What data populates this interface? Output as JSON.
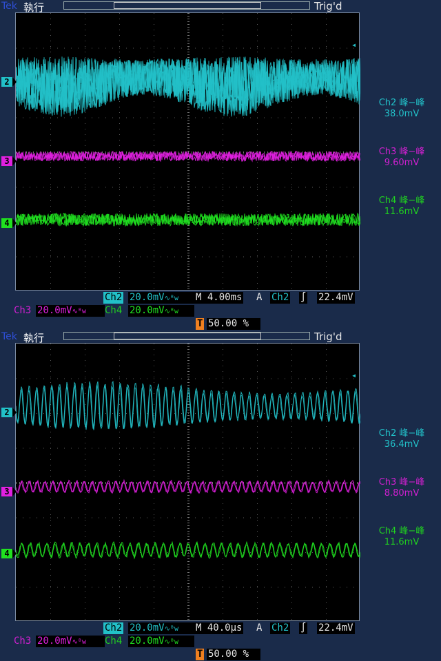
{
  "brand": "Tek",
  "panels": [
    {
      "mode": "執行",
      "trig_state": "Trig'd",
      "meas": [
        {
          "label": "Ch2 峰−峰",
          "value": "38.0mV",
          "color": "#22c0c8"
        },
        {
          "label": "Ch3 峰−峰",
          "value": "9.60mV",
          "color": "#d020d0"
        },
        {
          "label": "Ch4 峰−峰",
          "value": "11.6mV",
          "color": "#20d020"
        }
      ],
      "status": {
        "ch2_name": "Ch2",
        "ch2_scale": "20.0mV",
        "timebase": "M 4.00ms",
        "trig_mode": "A",
        "trig_src": "Ch2",
        "trig_slope": "∫",
        "trig_level": "22.4mV",
        "ch3_name": "Ch3",
        "ch3_scale": "20.0mV",
        "ch4_name": "Ch4",
        "ch4_scale": "20.0mV",
        "bw_limit": "∿ᴮw",
        "trig_pos_icon": "T",
        "trig_pos": "50.00 %"
      },
      "channel_markers": [
        "2",
        "3",
        "4"
      ]
    },
    {
      "mode": "執行",
      "trig_state": "Trig'd",
      "meas": [
        {
          "label": "Ch2 峰−峰",
          "value": "36.4mV",
          "color": "#22c0c8"
        },
        {
          "label": "Ch3 峰−峰",
          "value": "8.80mV",
          "color": "#d020d0"
        },
        {
          "label": "Ch4 峰−峰",
          "value": "11.6mV",
          "color": "#20d020"
        }
      ],
      "status": {
        "ch2_name": "Ch2",
        "ch2_scale": "20.0mV",
        "timebase": "M 40.0µs",
        "trig_mode": "A",
        "trig_src": "Ch2",
        "trig_slope": "∫",
        "trig_level": "22.4mV",
        "ch3_name": "Ch3",
        "ch3_scale": "20.0mV",
        "ch4_name": "Ch4",
        "ch4_scale": "20.0mV",
        "bw_limit": "∿ᴮw",
        "trig_pos_icon": "T",
        "trig_pos": "50.00 %"
      },
      "channel_markers": [
        "2",
        "3",
        "4"
      ]
    }
  ],
  "colors": {
    "ch2": "#22c0c8",
    "ch3": "#e020e0",
    "ch4": "#20e020",
    "grid": "#5a5a5a",
    "trigger": "#f08020"
  }
}
